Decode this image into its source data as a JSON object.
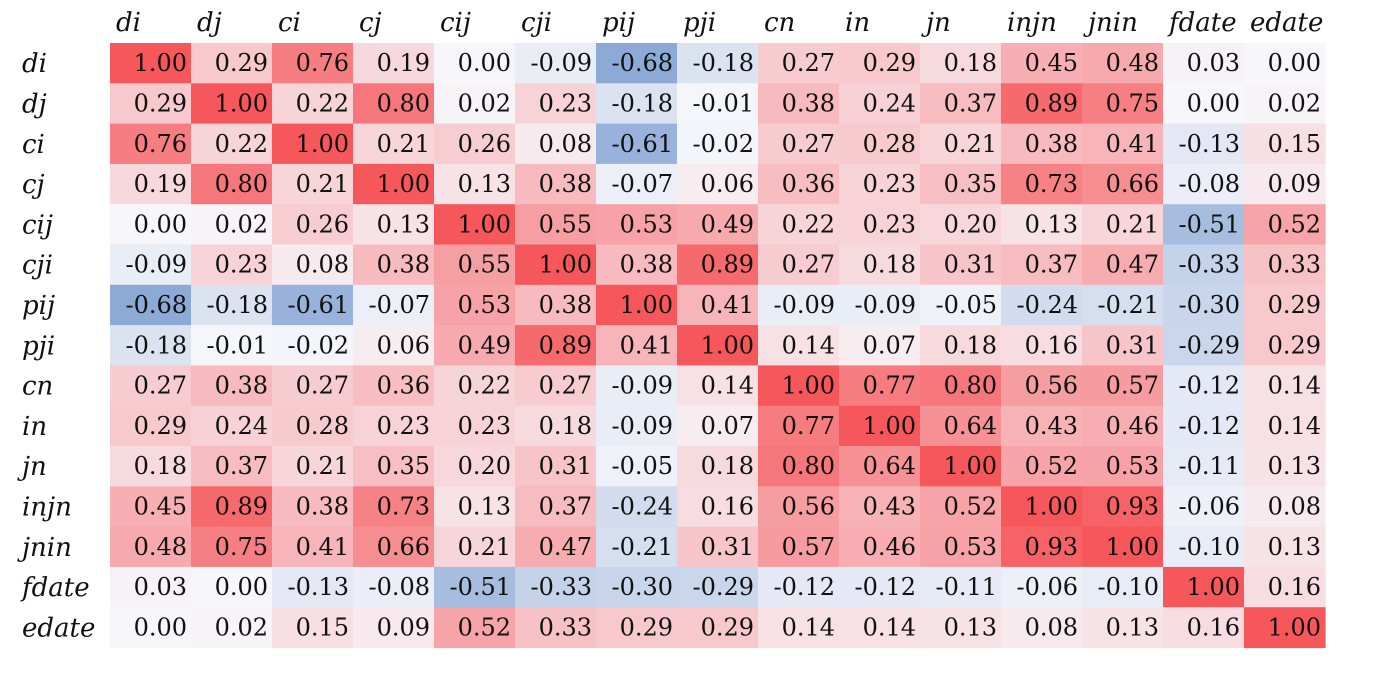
{
  "chart_data": {
    "type": "heatmap",
    "title": "",
    "x_labels": [
      "di",
      "dj",
      "ci",
      "cj",
      "cij",
      "cji",
      "pij",
      "pji",
      "cn",
      "in",
      "jn",
      "injn",
      "jnin",
      "fdate",
      "edate"
    ],
    "y_labels": [
      "di",
      "dj",
      "ci",
      "cj",
      "cij",
      "cji",
      "pij",
      "pji",
      "cn",
      "in",
      "jn",
      "injn",
      "jnin",
      "fdate",
      "edate"
    ],
    "value_range": [
      -1,
      1
    ],
    "colormap": {
      "negative": "#5b86c6",
      "zero": "#f7f7fb",
      "positive": "#f6575b"
    },
    "values": [
      [
        "1.00",
        "0.29",
        "0.76",
        "0.19",
        "0.00",
        "-0.09",
        "-0.68",
        "-0.18",
        "0.27",
        "0.29",
        "0.18",
        "0.45",
        "0.48",
        "0.03",
        "0.00"
      ],
      [
        "0.29",
        "1.00",
        "0.22",
        "0.80",
        "0.02",
        "0.23",
        "-0.18",
        "-0.01",
        "0.38",
        "0.24",
        "0.37",
        "0.89",
        "0.75",
        "0.00",
        "0.02"
      ],
      [
        "0.76",
        "0.22",
        "1.00",
        "0.21",
        "0.26",
        "0.08",
        "-0.61",
        "-0.02",
        "0.27",
        "0.28",
        "0.21",
        "0.38",
        "0.41",
        "-0.13",
        "0.15"
      ],
      [
        "0.19",
        "0.80",
        "0.21",
        "1.00",
        "0.13",
        "0.38",
        "-0.07",
        "0.06",
        "0.36",
        "0.23",
        "0.35",
        "0.73",
        "0.66",
        "-0.08",
        "0.09"
      ],
      [
        "0.00",
        "0.02",
        "0.26",
        "0.13",
        "1.00",
        "0.55",
        "0.53",
        "0.49",
        "0.22",
        "0.23",
        "0.20",
        "0.13",
        "0.21",
        "-0.51",
        "0.52"
      ],
      [
        "-0.09",
        "0.23",
        "0.08",
        "0.38",
        "0.55",
        "1.00",
        "0.38",
        "0.89",
        "0.27",
        "0.18",
        "0.31",
        "0.37",
        "0.47",
        "-0.33",
        "0.33"
      ],
      [
        "-0.68",
        "-0.18",
        "-0.61",
        "-0.07",
        "0.53",
        "0.38",
        "1.00",
        "0.41",
        "-0.09",
        "-0.09",
        "-0.05",
        "-0.24",
        "-0.21",
        "-0.30",
        "0.29"
      ],
      [
        "-0.18",
        "-0.01",
        "-0.02",
        "0.06",
        "0.49",
        "0.89",
        "0.41",
        "1.00",
        "0.14",
        "0.07",
        "0.18",
        "0.16",
        "0.31",
        "-0.29",
        "0.29"
      ],
      [
        "0.27",
        "0.38",
        "0.27",
        "0.36",
        "0.22",
        "0.27",
        "-0.09",
        "0.14",
        "1.00",
        "0.77",
        "0.80",
        "0.56",
        "0.57",
        "-0.12",
        "0.14"
      ],
      [
        "0.29",
        "0.24",
        "0.28",
        "0.23",
        "0.23",
        "0.18",
        "-0.09",
        "0.07",
        "0.77",
        "1.00",
        "0.64",
        "0.43",
        "0.46",
        "-0.12",
        "0.14"
      ],
      [
        "0.18",
        "0.37",
        "0.21",
        "0.35",
        "0.20",
        "0.31",
        "-0.05",
        "0.18",
        "0.80",
        "0.64",
        "1.00",
        "0.52",
        "0.53",
        "-0.11",
        "0.13"
      ],
      [
        "0.45",
        "0.89",
        "0.38",
        "0.73",
        "0.13",
        "0.37",
        "-0.24",
        "0.16",
        "0.56",
        "0.43",
        "0.52",
        "1.00",
        "0.93",
        "-0.06",
        "0.08"
      ],
      [
        "0.48",
        "0.75",
        "0.41",
        "0.66",
        "0.21",
        "0.47",
        "-0.21",
        "0.31",
        "0.57",
        "0.46",
        "0.53",
        "0.93",
        "1.00",
        "-0.10",
        "0.13"
      ],
      [
        "0.03",
        "0.00",
        "-0.13",
        "-0.08",
        "-0.51",
        "-0.33",
        "-0.30",
        "-0.29",
        "-0.12",
        "-0.12",
        "-0.11",
        "-0.06",
        "-0.10",
        "1.00",
        "0.16"
      ],
      [
        "0.00",
        "0.02",
        "0.15",
        "0.09",
        "0.52",
        "0.33",
        "0.29",
        "0.29",
        "0.14",
        "0.14",
        "0.13",
        "0.08",
        "0.13",
        "0.16",
        "1.00"
      ]
    ]
  }
}
